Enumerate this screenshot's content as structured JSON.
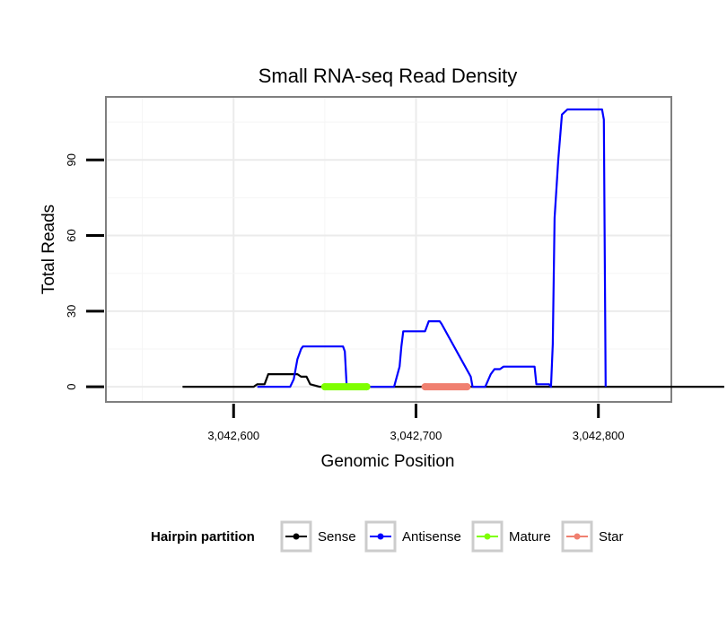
{
  "chart_data": {
    "type": "line",
    "title": "Small RNA-seq Read Density",
    "xlabel": "Genomic Position",
    "ylabel": "Total Reads",
    "xlim": [
      3042530,
      3042840
    ],
    "ylim": [
      -6,
      115
    ],
    "xticks": [
      3042600,
      3042700,
      3042800
    ],
    "xtick_labels": [
      "3,042,600",
      "3,042,700",
      "3,042,800"
    ],
    "yticks": [
      0,
      30,
      60,
      90
    ],
    "ytick_labels": [
      "0",
      "30",
      "60",
      "90"
    ],
    "grid": true,
    "legend": {
      "title": "Hairpin partition",
      "position": "bottom",
      "entries": [
        {
          "label": "Sense",
          "color": "#000000"
        },
        {
          "label": "Antisense",
          "color": "#0000ff"
        },
        {
          "label": "Mature",
          "color": "#7fff00"
        },
        {
          "label": "Star",
          "color": "#f08070"
        }
      ]
    },
    "series": [
      {
        "name": "Sense",
        "color": "#000000",
        "x": [
          3042572,
          3042611,
          3042613,
          3042617,
          3042619,
          3042623,
          3042635,
          3042637,
          3042640,
          3042642,
          3042647,
          3042869
        ],
        "y": [
          0,
          0,
          1,
          1,
          5,
          5,
          5,
          4,
          4,
          1,
          0,
          0
        ]
      },
      {
        "name": "Antisense",
        "color": "#0000ff",
        "x": [
          3042613,
          3042631,
          3042633,
          3042635,
          3042637,
          3042638,
          3042641,
          3042660,
          3042661,
          3042662,
          3042688,
          3042691,
          3042692,
          3042693,
          3042705,
          3042707,
          3042713,
          3042714,
          3042730,
          3042731,
          3042738,
          3042741,
          3042743,
          3042746,
          3042748,
          3042765,
          3042766,
          3042773,
          3042774,
          3042775,
          3042776,
          3042778,
          3042780,
          3042783,
          3042802,
          3042803,
          3042804
        ],
        "y": [
          0,
          0,
          3,
          11,
          15,
          16,
          16,
          16,
          14,
          0,
          0,
          8,
          16,
          22,
          22,
          26,
          26,
          25,
          4,
          0,
          0,
          5,
          7,
          7,
          8,
          8,
          1,
          1,
          0,
          17,
          67,
          90,
          108,
          110,
          110,
          106,
          0
        ]
      },
      {
        "name": "Mature",
        "color": "#7fff00",
        "x": [
          3042650,
          3042673
        ],
        "y": [
          0,
          0
        ]
      },
      {
        "name": "Star",
        "color": "#f08070",
        "x": [
          3042705,
          3042728
        ],
        "y": [
          0,
          0
        ]
      }
    ]
  }
}
